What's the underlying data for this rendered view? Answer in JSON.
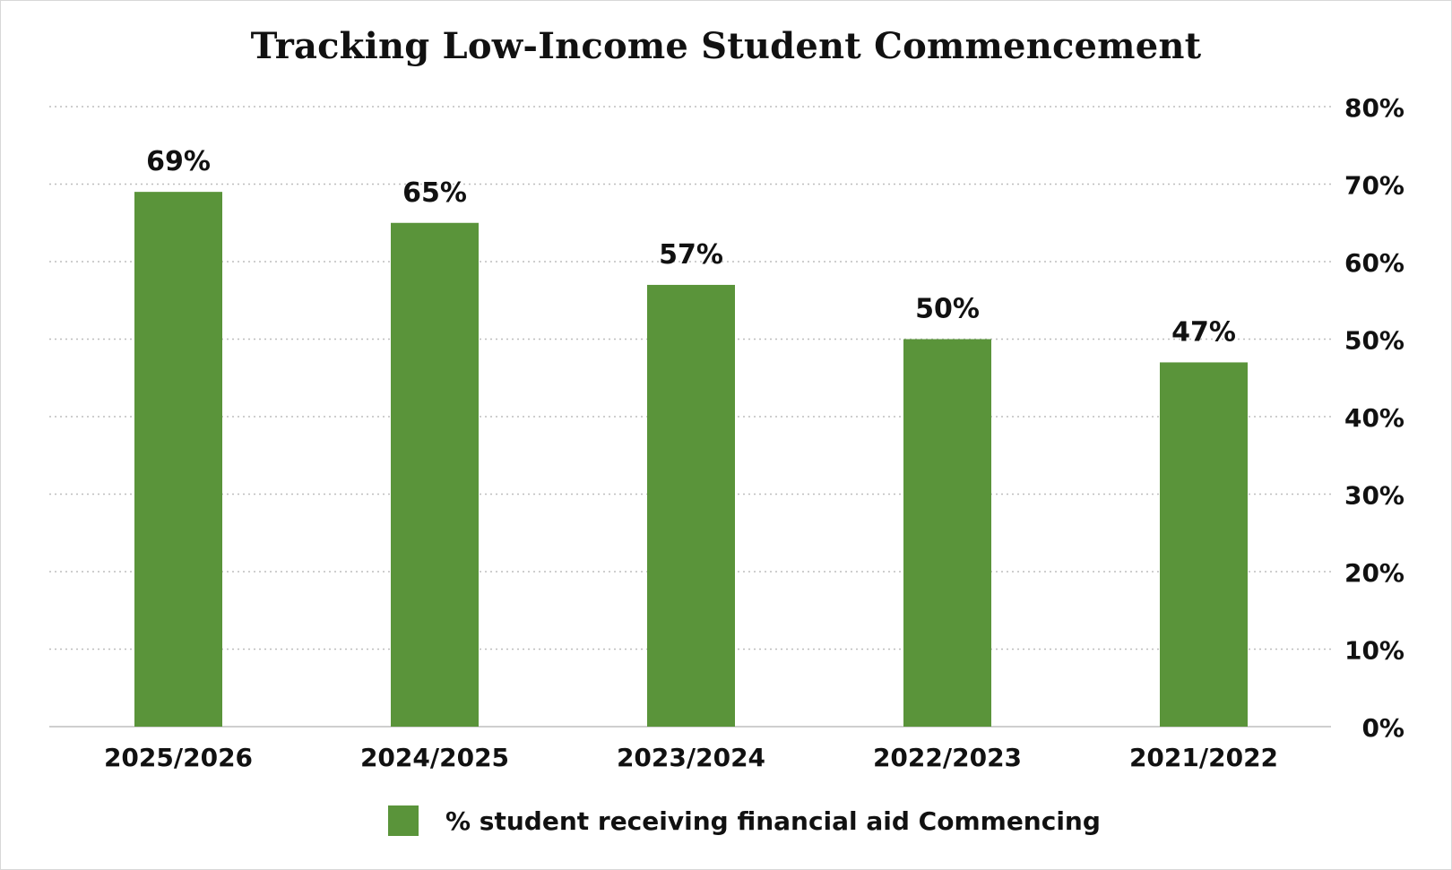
{
  "chart_data": {
    "type": "bar",
    "title": "Tracking Low-Income Student Commencement",
    "categories": [
      "2025/2026",
      "2024/2025",
      "2023/2024",
      "2022/2023",
      "2021/2022"
    ],
    "series": [
      {
        "name": "% student receiving financial aid Commencing",
        "values": [
          69,
          65,
          57,
          50,
          47
        ],
        "data_labels": [
          "69%",
          "65%",
          "57%",
          "50%",
          "47%"
        ],
        "color": "#5a943a"
      }
    ],
    "ylim": [
      0,
      80
    ],
    "yticks": [
      "0%",
      "10%",
      "20%",
      "30%",
      "40%",
      "50%",
      "60%",
      "70%",
      "80%"
    ],
    "y_axis_side": "right",
    "grid": true,
    "legend": "bottom"
  }
}
